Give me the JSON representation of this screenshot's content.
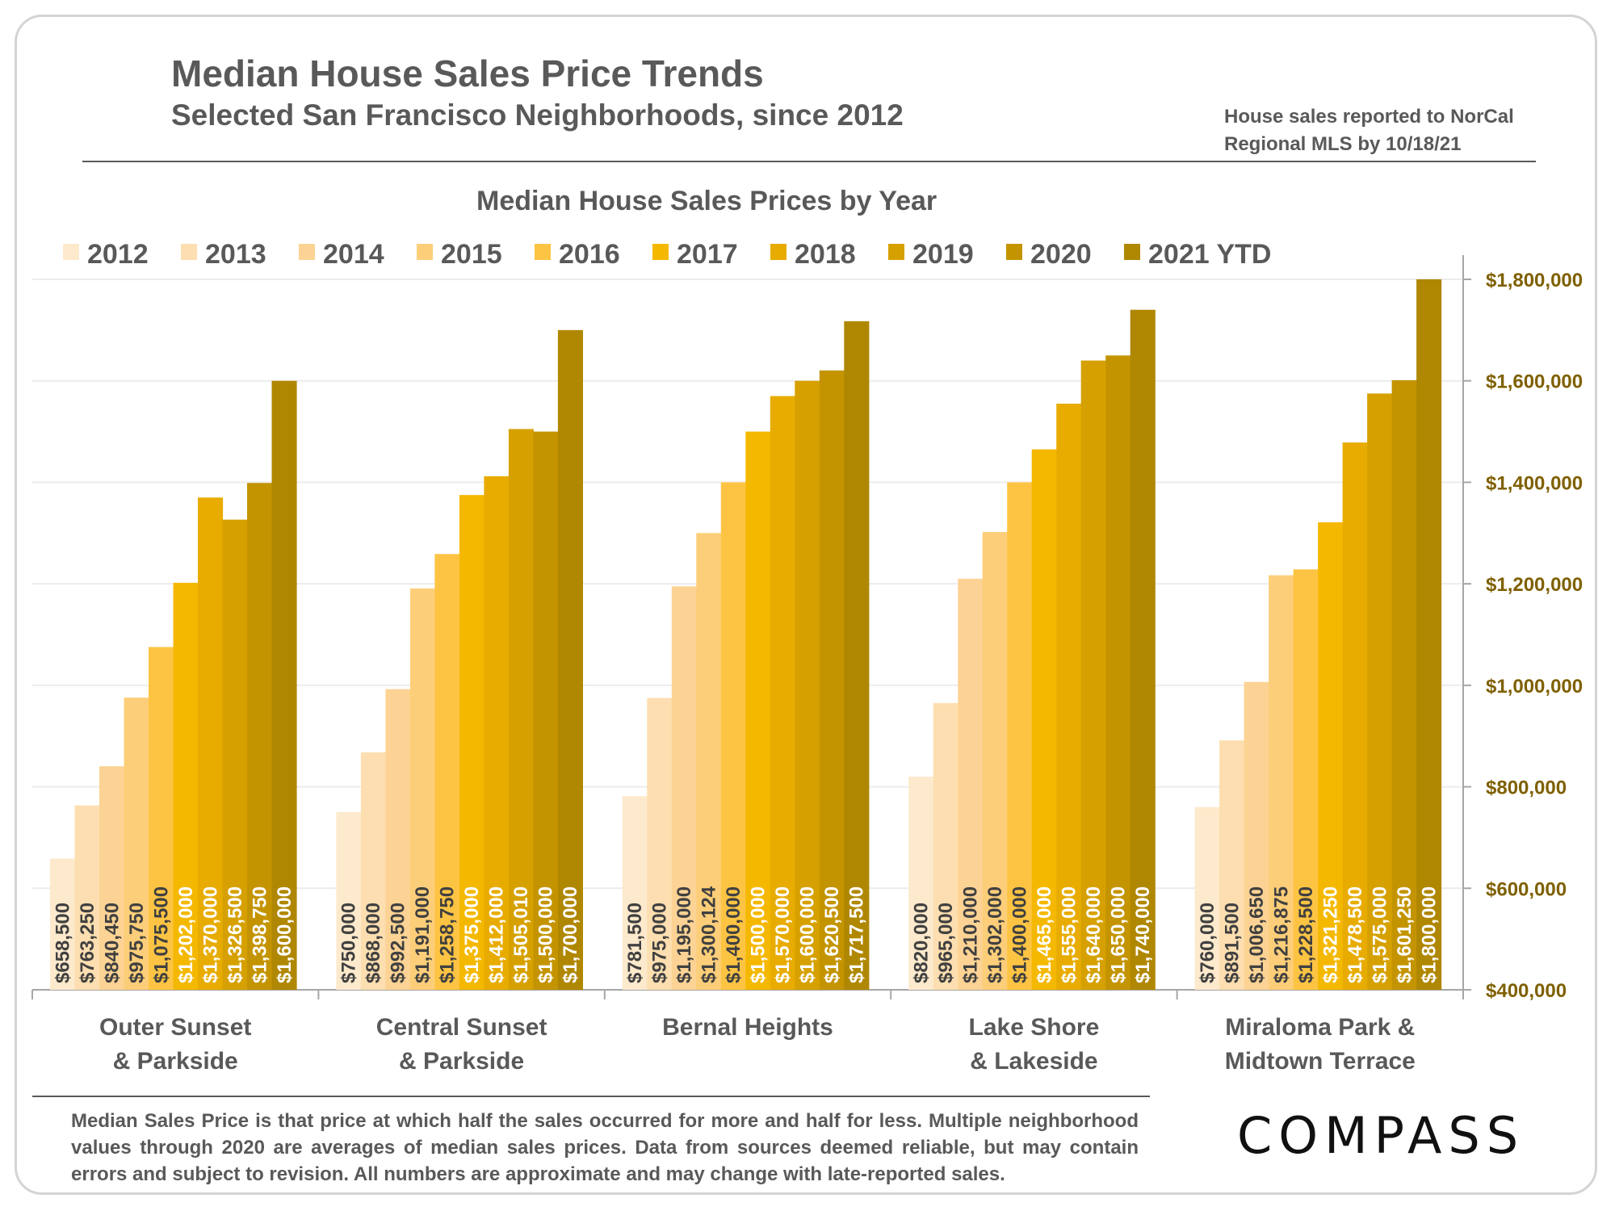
{
  "header": {
    "title": "Median House Sales Price Trends",
    "subtitle": "Selected San Francisco Neighborhoods, since 2012",
    "source": "House sales reported to NorCal Regional MLS by 10/18/21"
  },
  "footnote": "Median Sales Price is that price at which half the sales occurred for more and half for less. Multiple neighborhood values through 2020 are averages of median sales prices. Data from sources deemed reliable, but may contain errors and subject to revision.  All numbers are approximate and may change with late-reported sales.",
  "logo": "COMPASS",
  "chart_data": {
    "type": "bar",
    "title": "Median House Sales Prices by Year",
    "categories": [
      [
        "Outer Sunset",
        "& Parkside"
      ],
      [
        "Central Sunset",
        "& Parkside"
      ],
      [
        "Bernal Heights"
      ],
      [
        "Lake Shore",
        "& Lakeside"
      ],
      [
        "Miraloma Park &",
        "Midtown Terrace"
      ]
    ],
    "ylim": [
      400000,
      1800000
    ],
    "y_ticks": [
      400000,
      600000,
      800000,
      1000000,
      1200000,
      1400000,
      1600000,
      1800000
    ],
    "y_tick_labels": [
      "$400,000",
      "$600,000",
      "$800,000",
      "$1,000,000",
      "$1,200,000",
      "$1,400,000",
      "$1,600,000",
      "$1,800,000"
    ],
    "y_axis_position": "right",
    "legend_position": "top",
    "grid": true,
    "series": [
      {
        "name": "2012",
        "color": "#fde9cc",
        "label_color": "#404040",
        "values": [
          658500,
          750000,
          781500,
          820000,
          760000
        ],
        "labels": [
          "$658,500",
          "$750,000",
          "$781,500",
          "$820,000",
          "$760,000"
        ]
      },
      {
        "name": "2013",
        "color": "#fcdeb0",
        "label_color": "#404040",
        "values": [
          763250,
          868000,
          975000,
          965000,
          891500
        ],
        "labels": [
          "$763,250",
          "$868,000",
          "$975,000",
          "$965,000",
          "$891,500"
        ]
      },
      {
        "name": "2014",
        "color": "#fcd394",
        "label_color": "#404040",
        "values": [
          840450,
          992500,
          1195000,
          1210000,
          1006650
        ],
        "labels": [
          "$840,450",
          "$992,500",
          "$1,195,000",
          "$1,210,000",
          "$1,006,650"
        ]
      },
      {
        "name": "2015",
        "color": "#fdce79",
        "label_color": "#404040",
        "values": [
          975750,
          1191000,
          1300124,
          1302000,
          1216875
        ],
        "labels": [
          "$975,750",
          "$1,191,000",
          "$1,300,124",
          "$1,302,000",
          "$1,216,875"
        ]
      },
      {
        "name": "2016",
        "color": "#fdc444",
        "label_color": "#404040",
        "values": [
          1075500,
          1258750,
          1400000,
          1400000,
          1228500
        ],
        "labels": [
          "$1,075,500",
          "$1,258,750",
          "$1,400,000",
          "$1,400,000",
          "$1,228,500"
        ]
      },
      {
        "name": "2017",
        "color": "#f5b800",
        "label_color": "#ffffff",
        "values": [
          1202000,
          1375000,
          1500000,
          1465000,
          1321250
        ],
        "labels": [
          "$1,202,000",
          "$1,375,000",
          "$1,500,000",
          "$1,465,000",
          "$1,321,250"
        ]
      },
      {
        "name": "2018",
        "color": "#e8ac00",
        "label_color": "#ffffff",
        "values": [
          1370000,
          1412000,
          1570000,
          1555000,
          1478500
        ],
        "labels": [
          "$1,370,000",
          "$1,412,000",
          "$1,570,000",
          "$1,555,000",
          "$1,478,500"
        ]
      },
      {
        "name": "2019",
        "color": "#d6a100",
        "label_color": "#ffffff",
        "values": [
          1326500,
          1505010,
          1600000,
          1640000,
          1575000
        ],
        "labels": [
          "$1,326,500",
          "$1,505,010",
          "$1,600,000",
          "$1,640,000",
          "$1,575,000"
        ]
      },
      {
        "name": "2020",
        "color": "#c49400",
        "label_color": "#ffffff",
        "values": [
          1398750,
          1500000,
          1620500,
          1650000,
          1601250
        ],
        "labels": [
          "$1,398,750",
          "$1,500,000",
          "$1,620,500",
          "$1,650,000",
          "$1,601,250"
        ]
      },
      {
        "name": "2021 YTD",
        "color": "#b08700",
        "label_color": "#ffffff",
        "values": [
          1600000,
          1700000,
          1717500,
          1740000,
          1800000
        ],
        "labels": [
          "$1,600,000",
          "$1,700,000",
          "$1,717,500",
          "$1,740,000",
          "$1,800,000"
        ]
      }
    ]
  }
}
